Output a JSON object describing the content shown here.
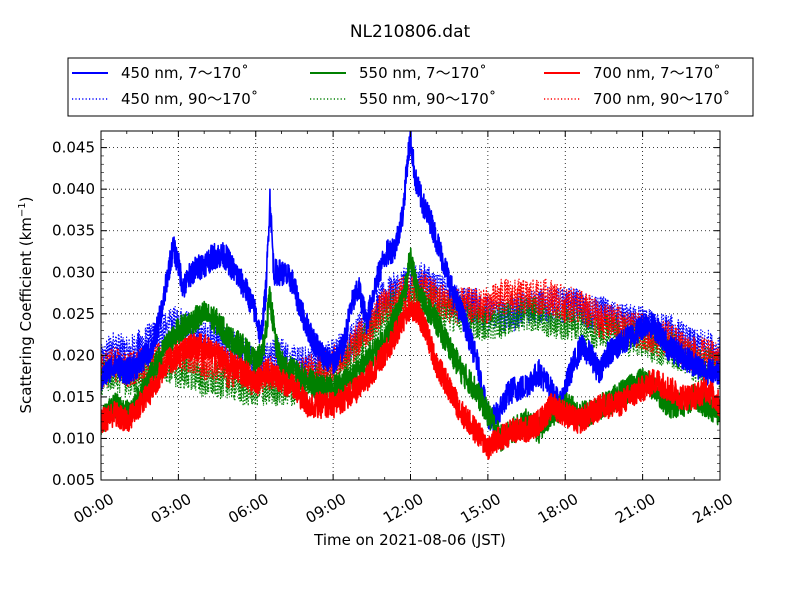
{
  "chart_data": {
    "type": "line",
    "title": "NL210806.dat",
    "xlabel": "Time on 2021-08-06 (JST)",
    "ylabel_main": "Scattering Coefficient (km",
    "ylabel_sup": "−1",
    "ylabel_end": ")",
    "xlim": [
      0,
      24
    ],
    "ylim": [
      0.005,
      0.047
    ],
    "x_ticks": [
      0,
      3,
      6,
      9,
      12,
      15,
      18,
      21,
      24
    ],
    "x_tick_labels": [
      "00:00",
      "03:00",
      "06:00",
      "09:00",
      "12:00",
      "15:00",
      "18:00",
      "21:00",
      "24:00"
    ],
    "y_ticks": [
      0.005,
      0.01,
      0.015,
      0.02,
      0.025,
      0.03,
      0.035,
      0.04,
      0.045
    ],
    "y_tick_labels": [
      "0.005",
      "0.010",
      "0.015",
      "0.020",
      "0.025",
      "0.030",
      "0.035",
      "0.040",
      "0.045"
    ],
    "grid": true,
    "legend_position": "top",
    "series": [
      {
        "name": "450 nm, 7～170˚",
        "color": "#0000ff",
        "style": "solid",
        "x": [
          0,
          0.5,
          1,
          1.5,
          2,
          2.4,
          2.6,
          2.8,
          3,
          3.2,
          3.5,
          4,
          4.4,
          4.8,
          5.2,
          5.6,
          6,
          6.2,
          6.4,
          6.55,
          6.7,
          7,
          7.4,
          7.8,
          8.2,
          8.6,
          9,
          9.4,
          9.7,
          10,
          10.3,
          10.6,
          11,
          11.4,
          11.7,
          11.9,
          12,
          12.2,
          12.5,
          12.8,
          13,
          13.2,
          13.4,
          13.7,
          14,
          14.3,
          14.6,
          14.9,
          15.1,
          15.4,
          15.7,
          16,
          16.3,
          16.7,
          17,
          17.4,
          17.8,
          18.2,
          18.6,
          19,
          19.3,
          19.6,
          20,
          20.4,
          20.8,
          21.2,
          21.6,
          22,
          22.5,
          23,
          23.5,
          24
        ],
        "y": [
          0.017,
          0.019,
          0.018,
          0.019,
          0.021,
          0.026,
          0.03,
          0.033,
          0.031,
          0.028,
          0.03,
          0.031,
          0.032,
          0.032,
          0.03,
          0.028,
          0.025,
          0.022,
          0.028,
          0.039,
          0.03,
          0.03,
          0.029,
          0.025,
          0.022,
          0.02,
          0.019,
          0.021,
          0.026,
          0.028,
          0.024,
          0.028,
          0.032,
          0.033,
          0.037,
          0.044,
          0.046,
          0.041,
          0.038,
          0.036,
          0.034,
          0.032,
          0.03,
          0.027,
          0.025,
          0.022,
          0.019,
          0.014,
          0.012,
          0.013,
          0.015,
          0.016,
          0.016,
          0.017,
          0.018,
          0.016,
          0.014,
          0.018,
          0.021,
          0.02,
          0.018,
          0.02,
          0.021,
          0.022,
          0.023,
          0.024,
          0.023,
          0.021,
          0.02,
          0.019,
          0.018,
          0.018
        ]
      },
      {
        "name": "450 nm, 90～170˚",
        "color": "#0000ff",
        "style": "dotted",
        "x": [
          0,
          0.5,
          1,
          1.5,
          2,
          2.5,
          3,
          3.5,
          4,
          4.5,
          5,
          5.5,
          6,
          6.5,
          7,
          7.5,
          8,
          8.5,
          9,
          9.5,
          10,
          10.5,
          11,
          11.5,
          12,
          12.5,
          13,
          13.5,
          14,
          14.5,
          15,
          15.5,
          16,
          16.5,
          17,
          17.5,
          18,
          18.5,
          19,
          19.5,
          20,
          20.5,
          21,
          21.5,
          22,
          22.5,
          23,
          23.5,
          24
        ],
        "y": [
          0.019,
          0.021,
          0.02,
          0.021,
          0.022,
          0.023,
          0.024,
          0.023,
          0.022,
          0.022,
          0.021,
          0.02,
          0.019,
          0.02,
          0.02,
          0.019,
          0.019,
          0.019,
          0.02,
          0.021,
          0.023,
          0.025,
          0.027,
          0.028,
          0.029,
          0.029,
          0.028,
          0.027,
          0.026,
          0.026,
          0.025,
          0.025,
          0.025,
          0.026,
          0.026,
          0.026,
          0.026,
          0.026,
          0.025,
          0.025,
          0.024,
          0.024,
          0.024,
          0.023,
          0.023,
          0.022,
          0.021,
          0.021,
          0.02
        ]
      },
      {
        "name": "550 nm, 7～170˚",
        "color": "#008000",
        "style": "solid",
        "x": [
          0,
          0.5,
          1,
          1.5,
          2,
          2.5,
          3,
          3.5,
          4,
          4.5,
          5,
          5.5,
          6,
          6.3,
          6.55,
          6.8,
          7,
          7.5,
          8,
          8.5,
          9,
          9.5,
          10,
          10.5,
          11,
          11.5,
          11.8,
          12,
          12.3,
          12.6,
          13,
          13.5,
          14,
          14.5,
          15,
          15.5,
          16,
          16.5,
          17,
          17.5,
          18,
          18.5,
          19,
          19.5,
          20,
          20.5,
          21,
          21.5,
          22,
          22.5,
          23,
          23.5,
          24
        ],
        "y": [
          0.012,
          0.014,
          0.013,
          0.015,
          0.018,
          0.021,
          0.023,
          0.024,
          0.025,
          0.024,
          0.022,
          0.021,
          0.019,
          0.021,
          0.027,
          0.021,
          0.019,
          0.018,
          0.017,
          0.016,
          0.016,
          0.017,
          0.018,
          0.02,
          0.022,
          0.025,
          0.028,
          0.032,
          0.027,
          0.026,
          0.024,
          0.021,
          0.018,
          0.016,
          0.013,
          0.01,
          0.011,
          0.012,
          0.011,
          0.013,
          0.014,
          0.013,
          0.013,
          0.014,
          0.015,
          0.016,
          0.017,
          0.016,
          0.014,
          0.014,
          0.015,
          0.014,
          0.013
        ]
      },
      {
        "name": "550 nm, 90～170˚",
        "color": "#008000",
        "style": "dotted",
        "x": [
          0,
          0.5,
          1,
          1.5,
          2,
          2.5,
          3,
          3.5,
          4,
          4.5,
          5,
          5.5,
          6,
          6.5,
          7,
          7.5,
          8,
          8.5,
          9,
          9.5,
          10,
          10.5,
          11,
          11.5,
          12,
          12.5,
          13,
          13.5,
          14,
          14.5,
          15,
          15.5,
          16,
          16.5,
          17,
          17.5,
          18,
          18.5,
          19,
          19.5,
          20,
          20.5,
          21,
          21.5,
          22,
          22.5,
          23,
          23.5,
          24
        ],
        "y": [
          0.017,
          0.018,
          0.017,
          0.018,
          0.018,
          0.019,
          0.018,
          0.018,
          0.017,
          0.017,
          0.017,
          0.016,
          0.016,
          0.016,
          0.016,
          0.016,
          0.017,
          0.017,
          0.018,
          0.019,
          0.021,
          0.023,
          0.025,
          0.026,
          0.027,
          0.027,
          0.026,
          0.025,
          0.025,
          0.024,
          0.024,
          0.024,
          0.025,
          0.025,
          0.025,
          0.024,
          0.024,
          0.024,
          0.023,
          0.023,
          0.023,
          0.022,
          0.022,
          0.021,
          0.021,
          0.02,
          0.019,
          0.019,
          0.018
        ]
      },
      {
        "name": "700 nm, 7～170˚",
        "color": "#ff0000",
        "style": "solid",
        "x": [
          0,
          0.5,
          1,
          1.5,
          2,
          2.5,
          3,
          3.5,
          4,
          4.5,
          5,
          5.5,
          6,
          6.5,
          7,
          7.5,
          8,
          8.5,
          9,
          9.5,
          10,
          10.5,
          11,
          11.5,
          12,
          12.3,
          12.6,
          13,
          13.5,
          14,
          14.5,
          15,
          15.5,
          16,
          16.5,
          17,
          17.5,
          18,
          18.5,
          19,
          19.5,
          20,
          20.5,
          21,
          21.5,
          22,
          22.5,
          23,
          23.5,
          24
        ],
        "y": [
          0.012,
          0.013,
          0.012,
          0.014,
          0.016,
          0.019,
          0.02,
          0.021,
          0.021,
          0.02,
          0.019,
          0.018,
          0.017,
          0.018,
          0.017,
          0.016,
          0.014,
          0.014,
          0.014,
          0.015,
          0.016,
          0.018,
          0.02,
          0.023,
          0.026,
          0.025,
          0.023,
          0.019,
          0.016,
          0.013,
          0.011,
          0.009,
          0.01,
          0.011,
          0.011,
          0.012,
          0.014,
          0.013,
          0.012,
          0.013,
          0.014,
          0.014,
          0.015,
          0.016,
          0.017,
          0.016,
          0.015,
          0.015,
          0.016,
          0.014
        ]
      },
      {
        "name": "700 nm, 90～170˚",
        "color": "#ff0000",
        "style": "dotted",
        "x": [
          0,
          0.5,
          1,
          1.5,
          2,
          2.5,
          3,
          3.5,
          4,
          4.5,
          5,
          5.5,
          6,
          6.5,
          7,
          7.5,
          8,
          8.5,
          9,
          9.5,
          10,
          10.5,
          11,
          11.5,
          12,
          12.5,
          13,
          13.5,
          14,
          14.5,
          15,
          15.5,
          16,
          16.5,
          17,
          17.5,
          18,
          18.5,
          19,
          19.5,
          20,
          20.5,
          21,
          21.5,
          22,
          22.5,
          23,
          23.5,
          24
        ],
        "y": [
          0.018,
          0.019,
          0.018,
          0.019,
          0.019,
          0.02,
          0.02,
          0.02,
          0.019,
          0.019,
          0.018,
          0.018,
          0.017,
          0.018,
          0.018,
          0.017,
          0.018,
          0.018,
          0.019,
          0.02,
          0.022,
          0.024,
          0.026,
          0.027,
          0.028,
          0.028,
          0.027,
          0.026,
          0.026,
          0.026,
          0.026,
          0.027,
          0.027,
          0.027,
          0.027,
          0.027,
          0.026,
          0.026,
          0.025,
          0.024,
          0.024,
          0.023,
          0.023,
          0.022,
          0.022,
          0.021,
          0.02,
          0.02,
          0.019
        ]
      }
    ]
  }
}
